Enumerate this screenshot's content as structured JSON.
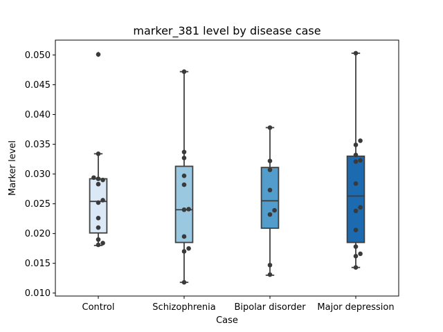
{
  "chart_data": {
    "type": "box",
    "title": "marker_381 level by disease case",
    "xlabel": "Case",
    "ylabel": "Marker level",
    "ylim": [
      0.0095,
      0.0525
    ],
    "yticks": [
      0.01,
      0.015,
      0.02,
      0.025,
      0.03,
      0.035,
      0.04,
      0.045,
      0.05
    ],
    "ytick_labels": [
      "0.010",
      "0.015",
      "0.020",
      "0.025",
      "0.030",
      "0.035",
      "0.040",
      "0.045",
      "0.050"
    ],
    "categories": [
      "Control",
      "Schizophrenia",
      "Bipolar disorder",
      "Major depression"
    ],
    "grid": false,
    "series": [
      {
        "category": "Control",
        "color": "#dbe9f6",
        "box": {
          "whisker_low": 0.018,
          "q1": 0.0201,
          "median": 0.0254,
          "q3": 0.0292,
          "whisker_high": 0.0334
        },
        "outliers": [
          0.0501
        ],
        "points": [
          0.0501,
          0.0334,
          0.0294,
          0.0292,
          0.029,
          0.0283,
          0.0256,
          0.0252,
          0.0226,
          0.021,
          0.019,
          0.0184,
          0.0181
        ]
      },
      {
        "category": "Schizophrenia",
        "color": "#9ac8e0",
        "box": {
          "whisker_low": 0.0118,
          "q1": 0.0185,
          "median": 0.024,
          "q3": 0.0313,
          "whisker_high": 0.0472
        },
        "outliers": [],
        "points": [
          0.0472,
          0.0337,
          0.0327,
          0.0297,
          0.0282,
          0.0241,
          0.024,
          0.0195,
          0.0175,
          0.017,
          0.0118
        ]
      },
      {
        "category": "Bipolar disorder",
        "color": "#529dcc",
        "box": {
          "whisker_low": 0.013,
          "q1": 0.0209,
          "median": 0.0255,
          "q3": 0.0311,
          "whisker_high": 0.0378
        },
        "outliers": [],
        "points": [
          0.0378,
          0.0322,
          0.0307,
          0.0273,
          0.0239,
          0.0232,
          0.0147,
          0.0131
        ]
      },
      {
        "category": "Major depression",
        "color": "#1c6aaf",
        "box": {
          "whisker_low": 0.0143,
          "q1": 0.0185,
          "median": 0.0263,
          "q3": 0.033,
          "whisker_high": 0.0503
        },
        "outliers": [],
        "points": [
          0.0503,
          0.0356,
          0.0349,
          0.0332,
          0.0323,
          0.0321,
          0.0284,
          0.0244,
          0.0238,
          0.0206,
          0.0178,
          0.0166,
          0.0162,
          0.0143
        ]
      }
    ]
  }
}
